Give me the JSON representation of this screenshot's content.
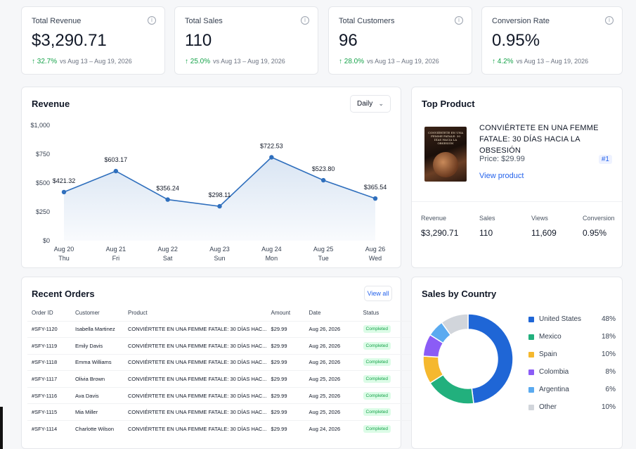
{
  "stats": [
    {
      "title": "Total Revenue",
      "value": "$3,290.71",
      "change": "32.7%",
      "compare": "vs Aug 13 – Aug 19, 2026"
    },
    {
      "title": "Total Sales",
      "value": "110",
      "change": "25.0%",
      "compare": "vs Aug 13 – Aug 19, 2026"
    },
    {
      "title": "Total Customers",
      "value": "96",
      "change": "28.0%",
      "compare": "vs Aug 13 – Aug 19, 2026"
    },
    {
      "title": "Conversion Rate",
      "value": "0.95%",
      "change": "4.2%",
      "compare": "vs Aug 13 – Aug 19, 2026"
    }
  ],
  "revenue": {
    "title": "Revenue",
    "period": "Daily"
  },
  "chart_data": {
    "type": "area",
    "title": "Revenue",
    "x": [
      "Aug 20",
      "Aug 21",
      "Aug 22",
      "Aug 23",
      "Aug 24",
      "Aug 25",
      "Aug 26"
    ],
    "x_sub": [
      "Thu",
      "Fri",
      "Sat",
      "Sun",
      "Mon",
      "Tue",
      "Wed"
    ],
    "values": [
      421.32,
      603.17,
      356.24,
      298.11,
      722.53,
      523.8,
      365.54
    ],
    "value_labels": [
      "$421.32",
      "$603.17",
      "$356.24",
      "$298.11",
      "$722.53",
      "$523.80",
      "$365.54"
    ],
    "yticks": [
      "$0",
      "$250",
      "$500",
      "$750",
      "$1,000"
    ],
    "ytick_values": [
      0,
      250,
      500,
      750,
      1000
    ],
    "ylim": [
      0,
      1000
    ],
    "grid": false,
    "color": "#2f6fbd"
  },
  "top_product": {
    "title": "Top Product",
    "cover_text": "CONVIÉRTETE EN UNA FEMME FATALE: 30 DÍAS HACIA LA OBSESIÓN",
    "name": "CONVIÉRTETE EN UNA FEMME FATALE: 30 DÍAS HACIA LA OBSESIÓN",
    "price": "Price: $29.99",
    "rank": "#1",
    "link": "View product",
    "stats": [
      {
        "label": "Revenue",
        "value": "$3,290.71"
      },
      {
        "label": "Sales",
        "value": "110"
      },
      {
        "label": "Views",
        "value": "11,609"
      },
      {
        "label": "Conversion",
        "value": "0.95%"
      }
    ]
  },
  "orders": {
    "title": "Recent Orders",
    "view_all": "View all",
    "columns": [
      "Order ID",
      "Customer",
      "Product",
      "Amount",
      "Date",
      "Status"
    ],
    "rows": [
      [
        "#SFY-1120",
        "Isabella Martinez",
        "CONVIÉRTETE EN UNA FEMME FATALE: 30 DÍAS HAC...",
        "$29.99",
        "Aug 26, 2026",
        "Completed"
      ],
      [
        "#SFY-1119",
        "Emily Davis",
        "CONVIÉRTETE EN UNA FEMME FATALE: 30 DÍAS HAC...",
        "$29.99",
        "Aug 26, 2026",
        "Completed"
      ],
      [
        "#SFY-1118",
        "Emma Williams",
        "CONVIÉRTETE EN UNA FEMME FATALE: 30 DÍAS HAC...",
        "$29.99",
        "Aug 26, 2026",
        "Completed"
      ],
      [
        "#SFY-1117",
        "Olivia Brown",
        "CONVIÉRTETE EN UNA FEMME FATALE: 30 DÍAS HAC...",
        "$29.99",
        "Aug 25, 2026",
        "Completed"
      ],
      [
        "#SFY-1116",
        "Ava Davis",
        "CONVIÉRTETE EN UNA FEMME FATALE: 30 DÍAS HAC...",
        "$29.99",
        "Aug 25, 2026",
        "Completed"
      ],
      [
        "#SFY-1115",
        "Mia Miller",
        "CONVIÉRTETE EN UNA FEMME FATALE: 30 DÍAS HAC...",
        "$29.99",
        "Aug 25, 2026",
        "Completed"
      ],
      [
        "#SFY-1114",
        "Charlotte Wilson",
        "CONVIÉRTETE EN UNA FEMME FATALE: 30 DÍAS HAC...",
        "$29.99",
        "Aug 24, 2026",
        "Completed"
      ]
    ]
  },
  "countries": {
    "title": "Sales by Country",
    "items": [
      {
        "name": "United States",
        "pct": "48%",
        "value": 48,
        "color": "#1f66d6"
      },
      {
        "name": "Mexico",
        "pct": "18%",
        "value": 18,
        "color": "#22b07d"
      },
      {
        "name": "Spain",
        "pct": "10%",
        "value": 10,
        "color": "#f5b82e"
      },
      {
        "name": "Colombia",
        "pct": "8%",
        "value": 8,
        "color": "#8b5cf6"
      },
      {
        "name": "Argentina",
        "pct": "6%",
        "value": 6,
        "color": "#5aaaf0"
      },
      {
        "name": "Other",
        "pct": "10%",
        "value": 10,
        "color": "#d1d5db"
      }
    ]
  }
}
